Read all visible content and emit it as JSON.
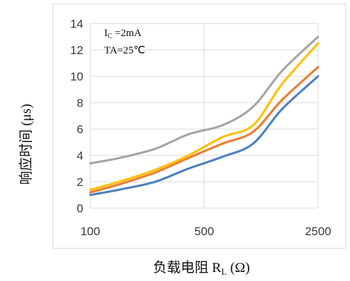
{
  "chart_data": {
    "type": "line",
    "title": "",
    "xlabel": "负载电阻 R",
    "xlabel_sub": "L",
    "xlabel_unit": " (Ω)",
    "ylabel": "响应时间 (μs)",
    "x_scale": "log",
    "xlim": [
      100,
      2500
    ],
    "ylim": [
      0,
      14
    ],
    "x_ticks": [
      100,
      500,
      2500
    ],
    "x_tick_labels": [
      "100",
      "500",
      "2500"
    ],
    "y_ticks": [
      0,
      2,
      4,
      6,
      8,
      10,
      12,
      14
    ],
    "y_tick_labels": [
      "0",
      "2",
      "4",
      "6",
      "8",
      "10",
      "12",
      "14"
    ],
    "grid": true,
    "legend": "none",
    "annotations": {
      "ic_main": "I",
      "ic_sub": "C",
      "ic_rest": " =2mA",
      "ta": "TA=25℃"
    },
    "series": [
      {
        "color": "#4f81bd",
        "x": [
          100,
          150,
          250,
          400,
          650,
          1000,
          1500,
          2500
        ],
        "y": [
          1.0,
          1.4,
          2.0,
          3.0,
          3.9,
          4.9,
          7.5,
          10.0
        ]
      },
      {
        "color": "#ed7d31",
        "x": [
          100,
          150,
          250,
          400,
          650,
          1000,
          1500,
          2500
        ],
        "y": [
          1.2,
          1.8,
          2.7,
          3.8,
          4.9,
          5.8,
          8.2,
          10.7
        ]
      },
      {
        "color": "#ffc000",
        "x": [
          100,
          150,
          250,
          400,
          650,
          1000,
          1500,
          2500
        ],
        "y": [
          1.4,
          2.0,
          2.9,
          4.0,
          5.4,
          6.3,
          9.4,
          12.5
        ]
      },
      {
        "color": "#a5a5a5",
        "x": [
          100,
          150,
          250,
          400,
          650,
          1000,
          1500,
          2500
        ],
        "y": [
          3.4,
          3.8,
          4.5,
          5.6,
          6.3,
          7.7,
          10.4,
          13.0
        ]
      }
    ]
  }
}
